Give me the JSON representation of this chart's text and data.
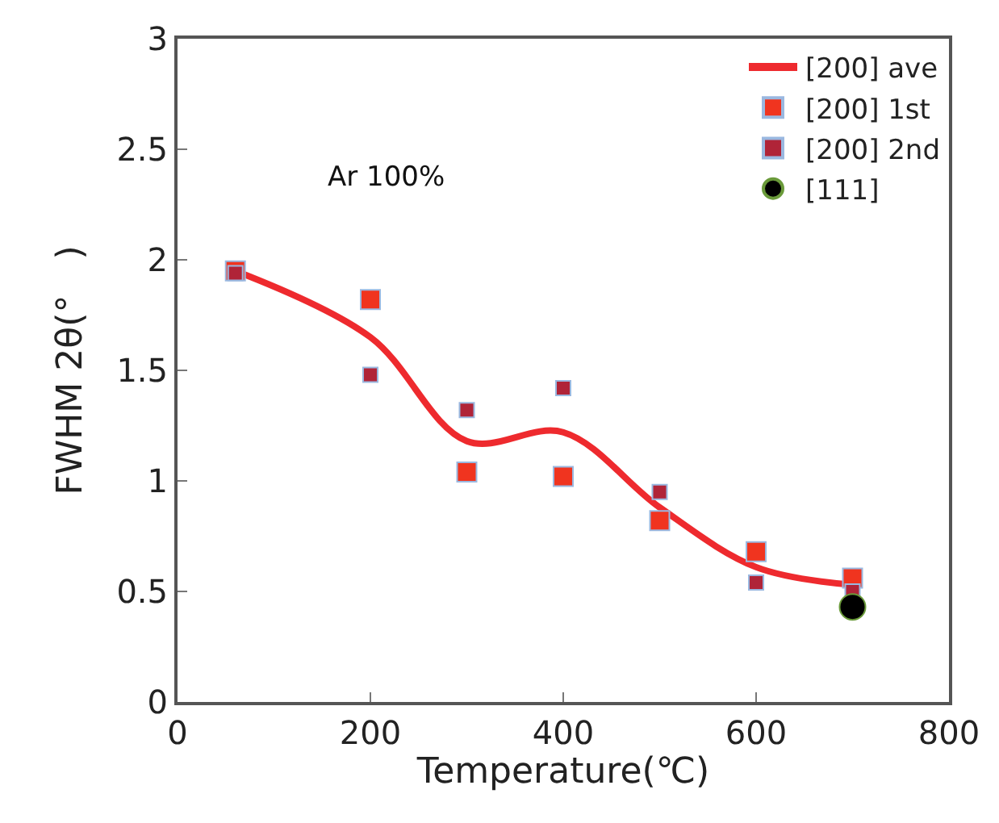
{
  "chart_data": {
    "type": "scatter",
    "xlabel": "Temperature(℃)",
    "ylabel": "FWHM 2θ(°　)",
    "x": [
      60,
      200,
      300,
      400,
      500,
      600,
      700
    ],
    "series": [
      {
        "name": "[200] ave",
        "type": "line",
        "color": "#ee2a2e",
        "line_style": "solid",
        "marker": "none",
        "values": [
          1.95,
          1.65,
          1.18,
          1.22,
          0.88,
          0.61,
          0.53
        ]
      },
      {
        "name": "[200] 1st",
        "color": "#f0341f",
        "marker": "square",
        "values": [
          1.95,
          1.82,
          1.04,
          1.02,
          0.82,
          0.68,
          0.56
        ]
      },
      {
        "name": "[200] 2nd",
        "color": "#b02438",
        "marker": "square",
        "values": [
          1.94,
          1.48,
          1.32,
          1.42,
          0.95,
          0.54,
          0.5
        ]
      },
      {
        "name": "[111]",
        "color": "#000000",
        "marker": "circle",
        "x": [
          700
        ],
        "values": [
          0.43
        ]
      }
    ],
    "xlim": [
      0,
      800
    ],
    "xticks": [
      0,
      200,
      400,
      600,
      800
    ],
    "ylim": [
      0,
      3
    ],
    "yticks": [
      0,
      0.5,
      1,
      1.5,
      2,
      2.5,
      3
    ],
    "legend": "top right",
    "annotations": [
      "Ar 100%"
    ]
  }
}
